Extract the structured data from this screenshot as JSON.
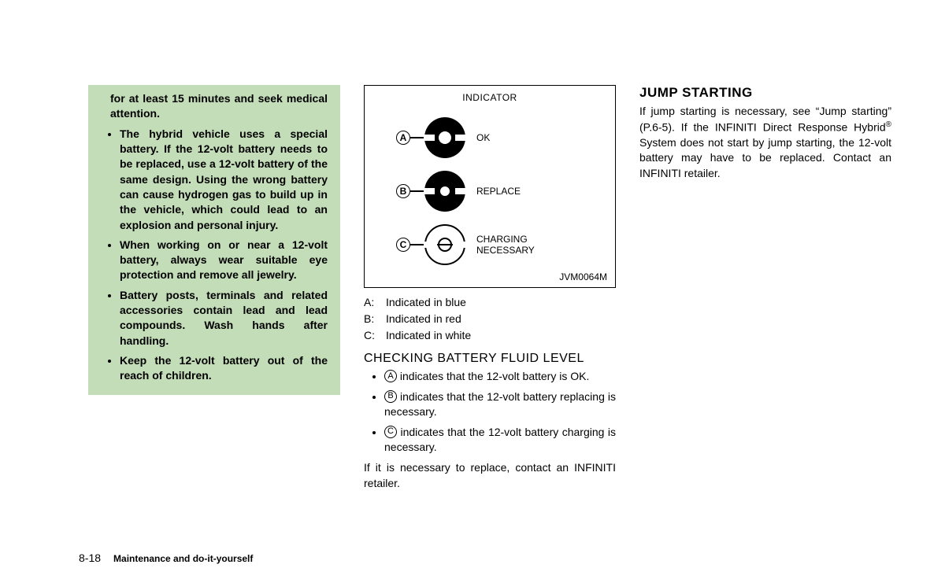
{
  "warnings": {
    "lead": "for at least 15 minutes and seek medical attention.",
    "items": [
      "The hybrid vehicle uses a special battery. If the 12-volt battery needs to be replaced, use a 12-volt battery of the same design. Using the wrong battery can cause hydrogen gas to build up in the vehicle, which could lead to an explosion and personal injury.",
      "When working on or near a 12-volt battery, always wear suitable eye protection and remove all jewelry.",
      "Battery posts, terminals and related accessories contain lead and lead compounds. Wash hands after handling.",
      "Keep the 12-volt battery out of the reach of children."
    ]
  },
  "diagram": {
    "title": "INDICATOR",
    "rows": {
      "a": {
        "letter": "A",
        "label": "OK"
      },
      "b": {
        "letter": "B",
        "label": "REPLACE"
      },
      "c": {
        "letter": "C",
        "label_line1": "CHARGING",
        "label_line2": "NECESSARY"
      }
    },
    "code": "JVM0064M"
  },
  "legend": {
    "a": {
      "k": "A:",
      "v": "Indicated in blue"
    },
    "b": {
      "k": "B:",
      "v": "Indicated in red"
    },
    "c": {
      "k": "C:",
      "v": "Indicated in white"
    }
  },
  "section": {
    "fluid_title": "CHECKING BATTERY FLUID LEVEL",
    "items": {
      "a": {
        "letter": "A",
        "after": " indicates that the 12-volt battery is OK."
      },
      "b": {
        "letter": "B",
        "after": " indicates that the 12-volt battery replacing is necessary."
      },
      "c": {
        "letter": "C",
        "after": " indicates that the 12-volt battery charging is necessary."
      }
    },
    "trail": "If it is necessary to replace, contact an INFINITI retailer."
  },
  "jump": {
    "title": "JUMP STARTING",
    "body_before": "If jump starting is necessary, see “Jump starting” (P.6-5). If the INFINITI Direct Response Hybrid",
    "body_after": " System does not start by jump starting, the 12-volt battery may have to be replaced. Contact an INFINITI retailer."
  },
  "footer": {
    "page": "8-18",
    "title": "Maintenance and do-it-yourself"
  }
}
